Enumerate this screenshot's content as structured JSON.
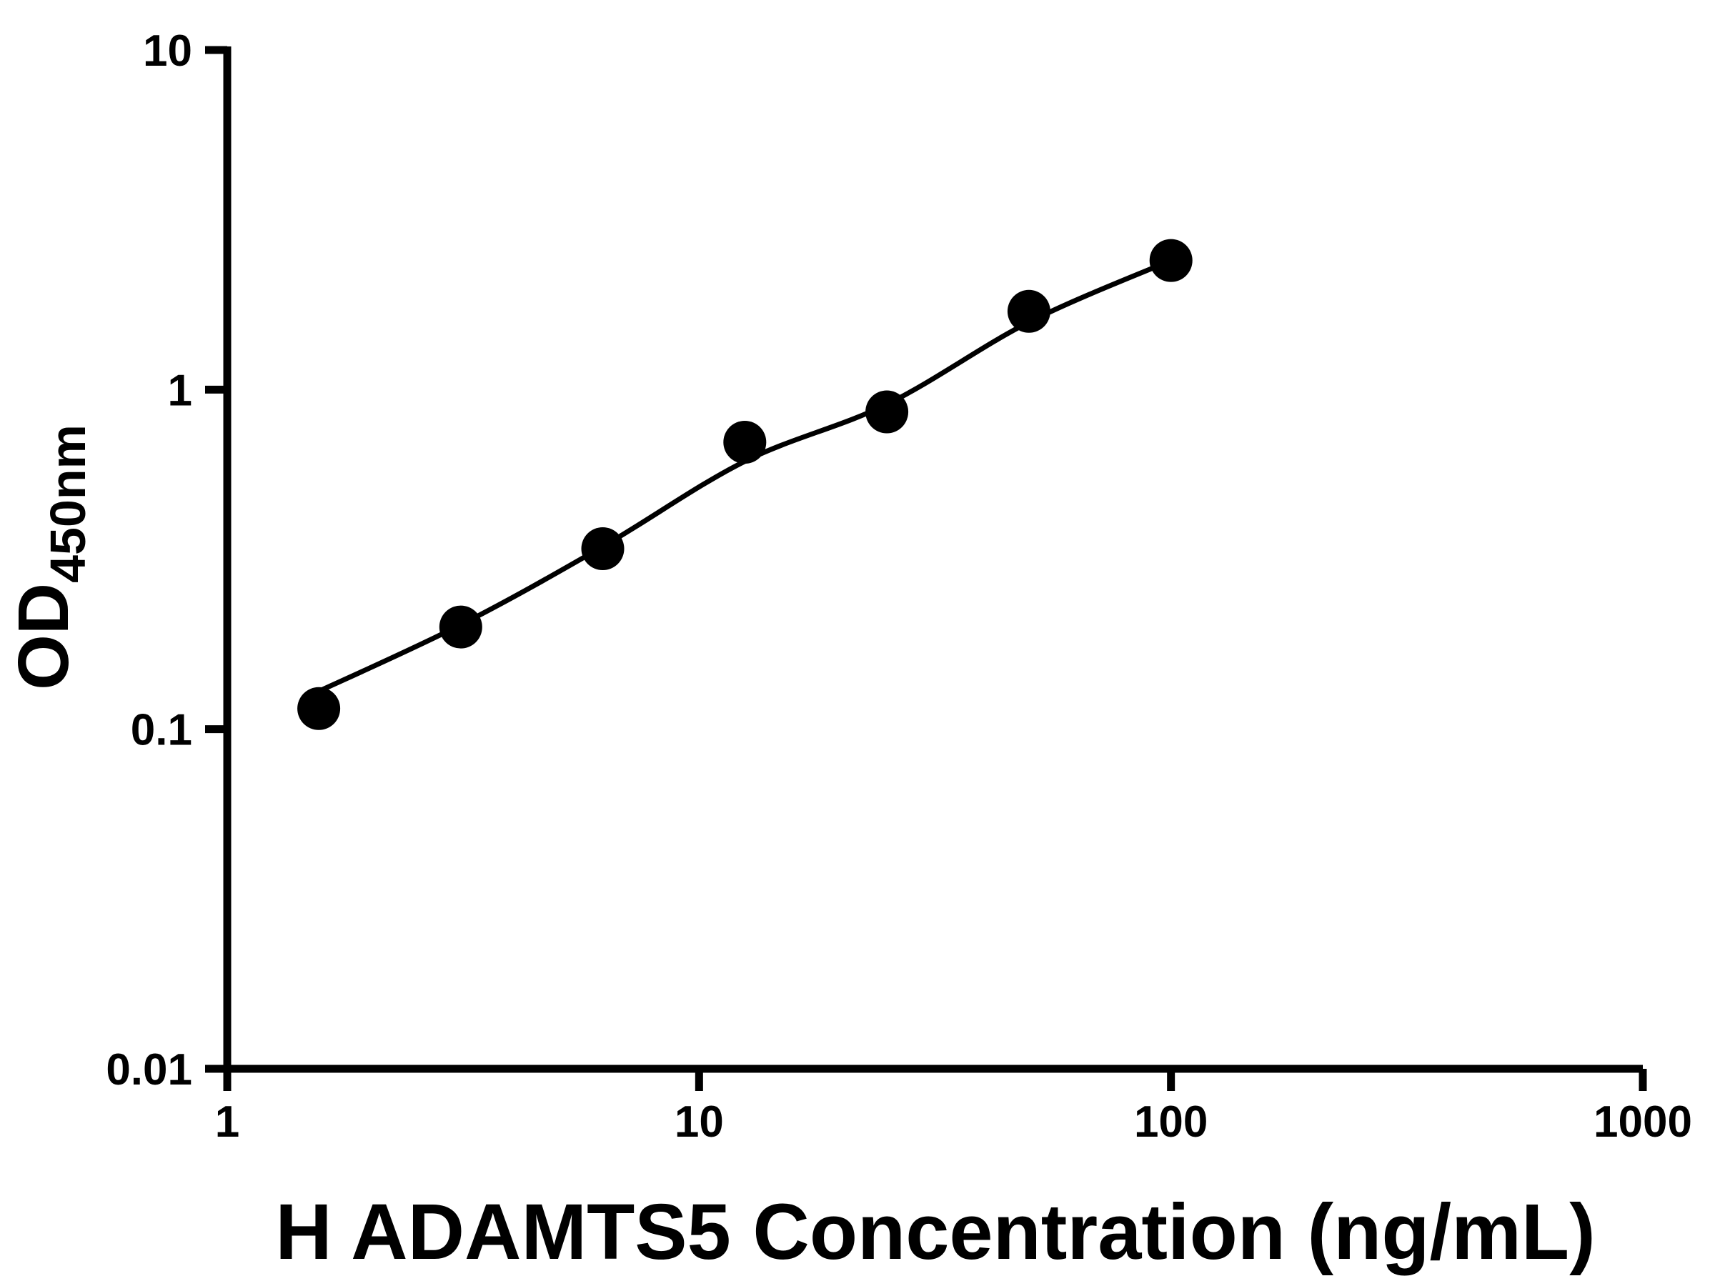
{
  "figure": {
    "background": "#ffffff",
    "foreground": "#000000"
  },
  "chart_data": {
    "type": "scatter",
    "title": "",
    "xlabel": "H ADAMTS5 Concentration (ng/mL)",
    "ylabel": "OD450nm",
    "ylabel_main": "OD",
    "ylabel_sub": "450nm",
    "x_scale": "log10",
    "y_scale": "log10",
    "xlim": [
      1,
      1000
    ],
    "ylim": [
      0.01,
      10
    ],
    "x_ticks": {
      "values": [
        1,
        10,
        100,
        1000
      ],
      "labels": [
        "1",
        "10",
        "100",
        "1000"
      ]
    },
    "y_ticks": {
      "values": [
        0.01,
        0.1,
        1,
        10
      ],
      "labels": [
        "0.01",
        "0.1",
        "1",
        "10"
      ]
    },
    "grid": false,
    "legend": false,
    "series": [
      {
        "name": "ELISA standard points",
        "marker": "filled-circle",
        "color": "#000000",
        "x": [
          1.563,
          3.125,
          6.25,
          12.5,
          25,
          50,
          100
        ],
        "y": [
          0.115,
          0.2,
          0.34,
          0.7,
          0.86,
          1.7,
          2.4
        ]
      }
    ],
    "fit_curve": {
      "name": "standard curve fit",
      "color": "#000000",
      "x": [
        1.5,
        3.125,
        6.25,
        12.5,
        25,
        50,
        100
      ],
      "y": [
        0.126,
        0.203,
        0.345,
        0.615,
        0.905,
        1.58,
        2.4
      ]
    }
  }
}
